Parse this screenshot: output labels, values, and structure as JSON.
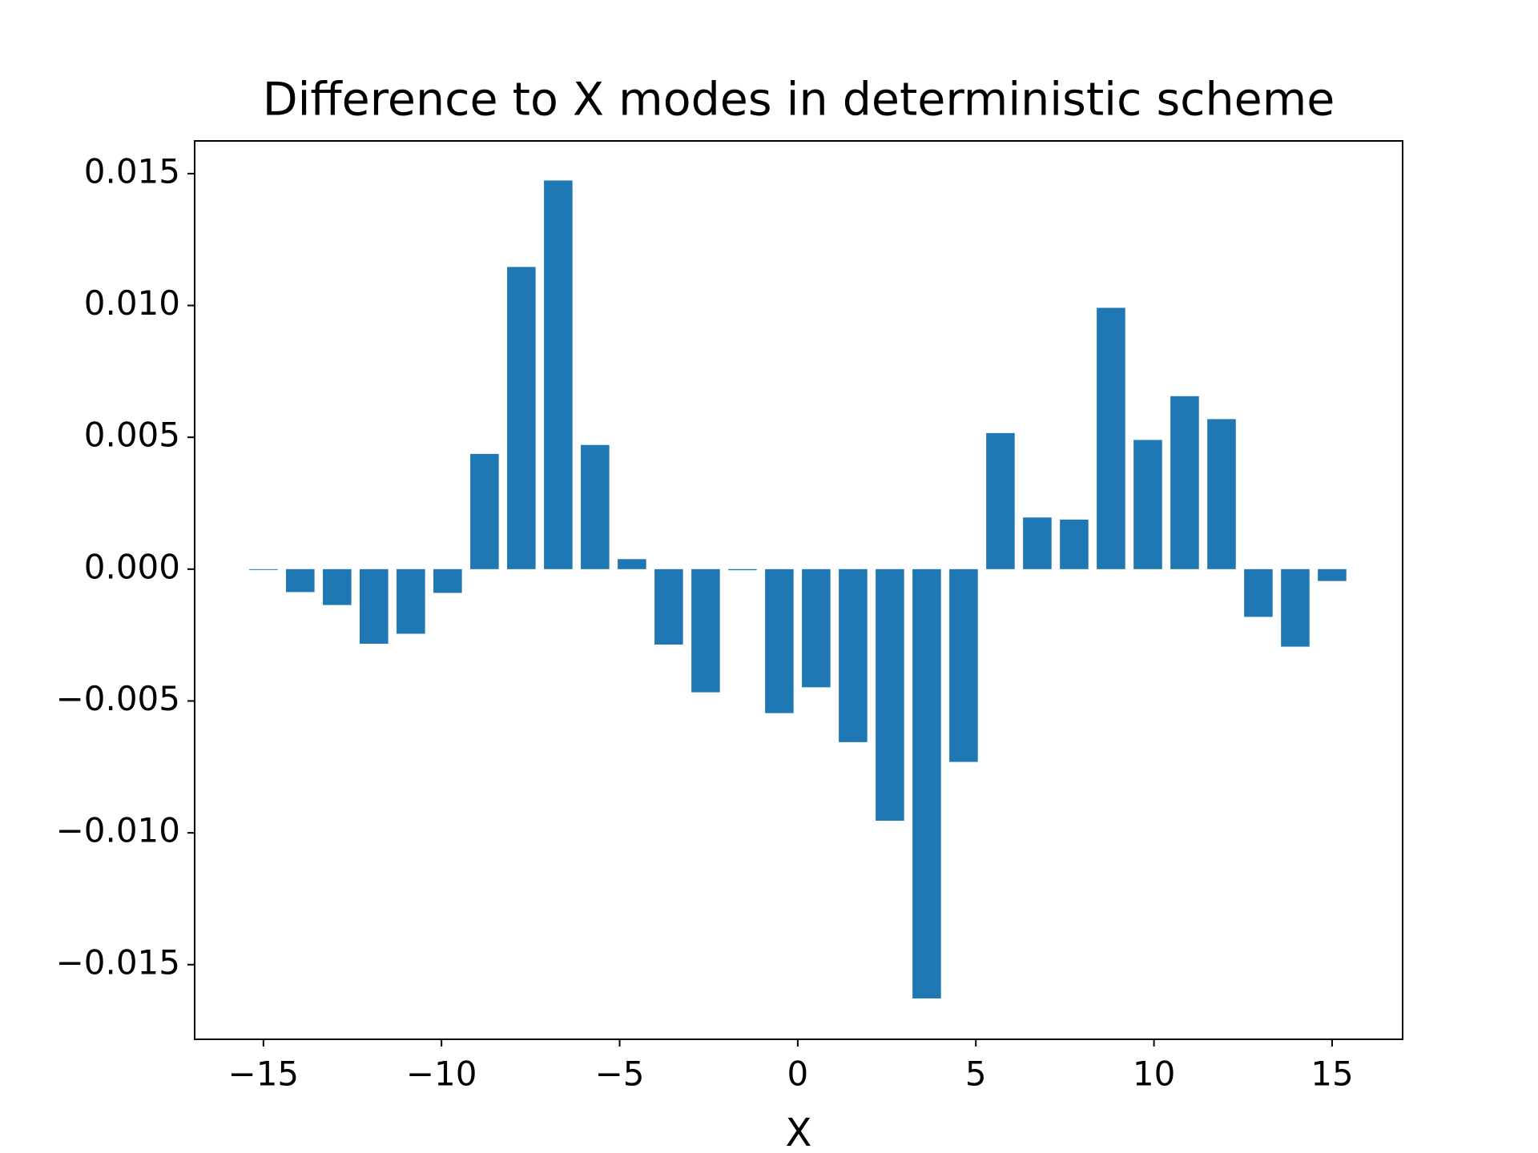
{
  "chart_data": {
    "type": "bar",
    "title": "Difference to X modes in deterministic scheme",
    "xlabel": "X",
    "color": "#1f77b4",
    "x": [
      -15,
      -13.966,
      -12.931,
      -11.897,
      -10.862,
      -9.828,
      -8.793,
      -7.759,
      -6.724,
      -5.69,
      -4.655,
      -3.621,
      -2.586,
      -1.552,
      -0.517,
      0.517,
      1.552,
      2.586,
      3.621,
      4.655,
      5.69,
      6.724,
      7.759,
      8.793,
      9.828,
      10.862,
      11.897,
      12.931,
      13.966,
      15
    ],
    "values": [
      -3e-05,
      -0.00087,
      -0.00136,
      -0.00283,
      -0.00245,
      -0.0009,
      0.00437,
      0.01146,
      0.01474,
      0.00471,
      0.00038,
      -0.00286,
      -0.00467,
      -4e-05,
      -0.00546,
      -0.00448,
      -0.00656,
      -0.00954,
      -0.01628,
      -0.00731,
      0.00516,
      0.00196,
      0.00188,
      0.00991,
      0.0049,
      0.00656,
      0.00569,
      -0.00181,
      -0.00294,
      -0.00045
    ],
    "xlim": [
      -16.93,
      16.98
    ],
    "ylim": [
      -0.01783,
      0.01624
    ],
    "xticks": [
      {
        "value": -15,
        "label": "−15"
      },
      {
        "value": -10,
        "label": "−10"
      },
      {
        "value": -5,
        "label": "−5"
      },
      0,
      5,
      10,
      15
    ],
    "yticks": [
      {
        "value": -0.015,
        "label": "−0.015"
      },
      {
        "value": -0.01,
        "label": "−0.010"
      },
      {
        "value": -0.005,
        "label": "−0.005"
      },
      {
        "value": 0,
        "label": "0.000"
      },
      {
        "value": 0.005,
        "label": "0.005"
      },
      {
        "value": 0.01,
        "label": "0.010"
      },
      {
        "value": 0.015,
        "label": "0.015"
      }
    ],
    "grid": false
  }
}
